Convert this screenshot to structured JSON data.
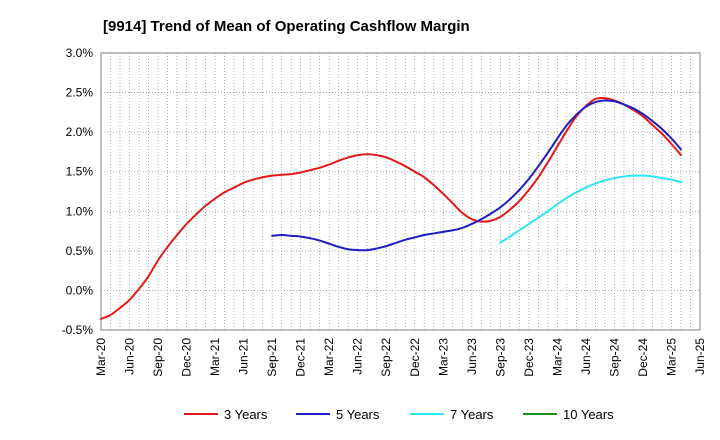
{
  "chart_data": {
    "type": "line",
    "title": "[9914]  Trend of Mean of Operating Cashflow Margin",
    "xlabel": "",
    "ylabel": "",
    "ylim": [
      -0.5,
      3.0
    ],
    "yticks": [
      -0.5,
      0.0,
      0.5,
      1.0,
      1.5,
      2.0,
      2.5,
      3.0
    ],
    "ytick_labels": [
      "-0.5%",
      "0.0%",
      "0.5%",
      "1.0%",
      "1.5%",
      "2.0%",
      "2.5%",
      "3.0%"
    ],
    "xtick_labels": [
      "Mar-20",
      "Jun-20",
      "Sep-20",
      "Dec-20",
      "Mar-21",
      "Jun-21",
      "Sep-21",
      "Dec-21",
      "Mar-22",
      "Jun-22",
      "Sep-22",
      "Dec-22",
      "Mar-23",
      "Jun-23",
      "Sep-23",
      "Dec-23",
      "Mar-24",
      "Jun-24",
      "Sep-24",
      "Dec-24",
      "Mar-25",
      "Jun-25"
    ],
    "x_unit": "months since Mar-20",
    "grid": true,
    "legend_position": "bottom",
    "series": [
      {
        "name": "3 Years",
        "color": "#e31a1c",
        "points": [
          [
            0,
            -0.36
          ],
          [
            1,
            -0.31
          ],
          [
            2,
            -0.22
          ],
          [
            3,
            -0.12
          ],
          [
            4,
            0.02
          ],
          [
            5,
            0.18
          ],
          [
            6,
            0.38
          ],
          [
            7,
            0.55
          ],
          [
            8,
            0.7
          ],
          [
            9,
            0.84
          ],
          [
            10,
            0.96
          ],
          [
            11,
            1.07
          ],
          [
            12,
            1.16
          ],
          [
            13,
            1.24
          ],
          [
            14,
            1.3
          ],
          [
            15,
            1.36
          ],
          [
            16,
            1.4
          ],
          [
            17,
            1.43
          ],
          [
            18,
            1.45
          ],
          [
            19,
            1.46
          ],
          [
            20,
            1.47
          ],
          [
            21,
            1.49
          ],
          [
            22,
            1.52
          ],
          [
            23,
            1.55
          ],
          [
            24,
            1.59
          ],
          [
            25,
            1.64
          ],
          [
            26,
            1.68
          ],
          [
            27,
            1.71
          ],
          [
            28,
            1.72
          ],
          [
            29,
            1.71
          ],
          [
            30,
            1.68
          ],
          [
            31,
            1.63
          ],
          [
            32,
            1.57
          ],
          [
            33,
            1.5
          ],
          [
            34,
            1.43
          ],
          [
            35,
            1.33
          ],
          [
            36,
            1.22
          ],
          [
            37,
            1.1
          ],
          [
            38,
            0.98
          ],
          [
            39,
            0.9
          ],
          [
            40,
            0.87
          ],
          [
            41,
            0.88
          ],
          [
            42,
            0.93
          ],
          [
            43,
            1.02
          ],
          [
            44,
            1.13
          ],
          [
            45,
            1.27
          ],
          [
            46,
            1.43
          ],
          [
            47,
            1.62
          ],
          [
            48,
            1.82
          ],
          [
            49,
            2.02
          ],
          [
            50,
            2.2
          ],
          [
            51,
            2.33
          ],
          [
            52,
            2.42
          ],
          [
            53,
            2.43
          ],
          [
            54,
            2.4
          ],
          [
            55,
            2.35
          ],
          [
            56,
            2.28
          ],
          [
            57,
            2.2
          ],
          [
            58,
            2.09
          ],
          [
            59,
            1.98
          ],
          [
            60,
            1.85
          ],
          [
            61,
            1.71
          ]
        ]
      },
      {
        "name": "5 Years",
        "color": "#1f1fbf",
        "points": [
          [
            18,
            0.69
          ],
          [
            19,
            0.7
          ],
          [
            20,
            0.69
          ],
          [
            21,
            0.68
          ],
          [
            22,
            0.66
          ],
          [
            23,
            0.63
          ],
          [
            24,
            0.59
          ],
          [
            25,
            0.55
          ],
          [
            26,
            0.52
          ],
          [
            27,
            0.51
          ],
          [
            28,
            0.51
          ],
          [
            29,
            0.53
          ],
          [
            30,
            0.56
          ],
          [
            31,
            0.6
          ],
          [
            32,
            0.64
          ],
          [
            33,
            0.67
          ],
          [
            34,
            0.7
          ],
          [
            35,
            0.72
          ],
          [
            36,
            0.74
          ],
          [
            37,
            0.76
          ],
          [
            38,
            0.79
          ],
          [
            39,
            0.84
          ],
          [
            40,
            0.9
          ],
          [
            41,
            0.97
          ],
          [
            42,
            1.05
          ],
          [
            43,
            1.15
          ],
          [
            44,
            1.27
          ],
          [
            45,
            1.41
          ],
          [
            46,
            1.57
          ],
          [
            47,
            1.74
          ],
          [
            48,
            1.92
          ],
          [
            49,
            2.09
          ],
          [
            50,
            2.22
          ],
          [
            51,
            2.32
          ],
          [
            52,
            2.38
          ],
          [
            53,
            2.4
          ],
          [
            54,
            2.39
          ],
          [
            55,
            2.35
          ],
          [
            56,
            2.3
          ],
          [
            57,
            2.23
          ],
          [
            58,
            2.14
          ],
          [
            59,
            2.04
          ],
          [
            60,
            1.92
          ],
          [
            61,
            1.78
          ]
        ]
      },
      {
        "name": "7 Years",
        "color": "#2ee6f0",
        "points": [
          [
            42,
            0.6
          ],
          [
            43,
            0.68
          ],
          [
            44,
            0.76
          ],
          [
            45,
            0.84
          ],
          [
            46,
            0.92
          ],
          [
            47,
            1.0
          ],
          [
            48,
            1.09
          ],
          [
            49,
            1.17
          ],
          [
            50,
            1.24
          ],
          [
            51,
            1.3
          ],
          [
            52,
            1.35
          ],
          [
            53,
            1.39
          ],
          [
            54,
            1.42
          ],
          [
            55,
            1.44
          ],
          [
            56,
            1.45
          ],
          [
            57,
            1.45
          ],
          [
            58,
            1.44
          ],
          [
            59,
            1.42
          ],
          [
            60,
            1.4
          ],
          [
            61,
            1.37
          ]
        ]
      },
      {
        "name": "10 Years",
        "color": "#1a8f1a",
        "points": []
      }
    ]
  }
}
